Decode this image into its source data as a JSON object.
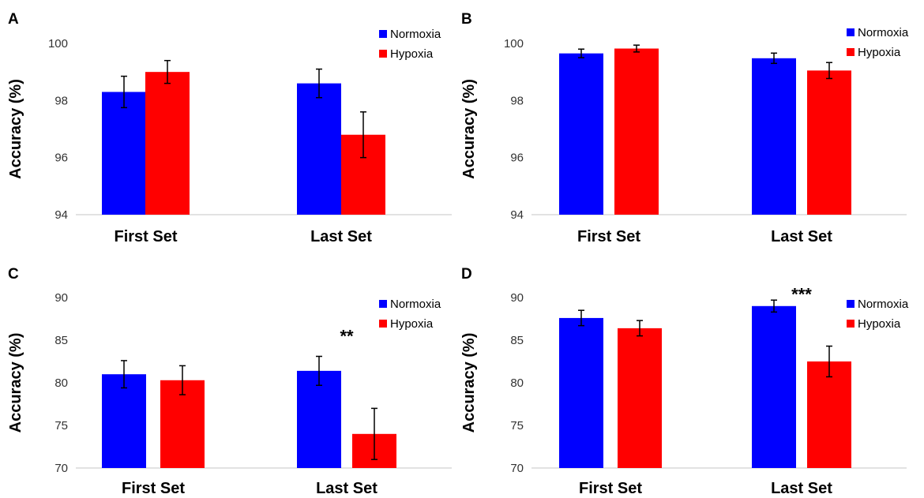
{
  "chart_data": [
    {
      "type": "bar",
      "panel": "A",
      "categories": [
        "First Set",
        "Last Set"
      ],
      "series": [
        {
          "name": "Normoxia",
          "color": "#0000ff",
          "values": [
            98.3,
            98.6
          ],
          "errors": [
            0.55,
            0.5
          ]
        },
        {
          "name": "Hypoxia",
          "color": "#ff0000",
          "values": [
            99.0,
            96.8
          ],
          "errors": [
            0.4,
            0.8
          ]
        }
      ],
      "ylabel": "Accuracy (%)",
      "ylim": [
        94,
        100
      ],
      "yticks": [
        "94",
        "96",
        "98",
        "100"
      ],
      "significance": [],
      "grid": false,
      "legend": "top-right"
    },
    {
      "type": "bar",
      "panel": "B",
      "categories": [
        "First Set",
        "Last Set"
      ],
      "series": [
        {
          "name": "Normoxia",
          "color": "#0000ff",
          "values": [
            99.65,
            99.48
          ],
          "errors": [
            0.15,
            0.18
          ]
        },
        {
          "name": "Hypoxia",
          "color": "#ff0000",
          "values": [
            99.82,
            99.05
          ],
          "errors": [
            0.12,
            0.28
          ]
        }
      ],
      "ylabel": "Accuracy (%)",
      "ylim": [
        94,
        100
      ],
      "yticks": [
        "94",
        "96",
        "98",
        "100"
      ],
      "significance": [],
      "grid": false,
      "legend": "top-right"
    },
    {
      "type": "bar",
      "panel": "C",
      "categories": [
        "First Set",
        "Last Set"
      ],
      "series": [
        {
          "name": "Normoxia",
          "color": "#0000ff",
          "values": [
            81.0,
            81.4
          ],
          "errors": [
            1.6,
            1.7
          ]
        },
        {
          "name": "Hypoxia",
          "color": "#ff0000",
          "values": [
            80.3,
            74.0
          ],
          "errors": [
            1.7,
            3.0
          ]
        }
      ],
      "ylabel": "Accuracy (%)",
      "ylim": [
        70,
        90
      ],
      "yticks": [
        "70",
        "75",
        "80",
        "85",
        "90"
      ],
      "significance": [
        {
          "category": 1,
          "label": "**",
          "value": 85.5
        }
      ],
      "grid": false,
      "legend": "top-right"
    },
    {
      "type": "bar",
      "panel": "D",
      "categories": [
        "First Set",
        "Last Set"
      ],
      "series": [
        {
          "name": "Normoxia",
          "color": "#0000ff",
          "values": [
            87.6,
            89.0
          ],
          "errors": [
            0.9,
            0.7
          ]
        },
        {
          "name": "Hypoxia",
          "color": "#ff0000",
          "values": [
            86.4,
            82.5
          ],
          "errors": [
            0.9,
            1.8
          ]
        }
      ],
      "ylabel": "Accuracy (%)",
      "ylim": [
        70,
        90
      ],
      "yticks": [
        "70",
        "75",
        "80",
        "85",
        "90"
      ],
      "significance": [
        {
          "category": 1,
          "label": "***",
          "value": 90.4
        }
      ],
      "grid": false,
      "legend": "top-right"
    }
  ]
}
